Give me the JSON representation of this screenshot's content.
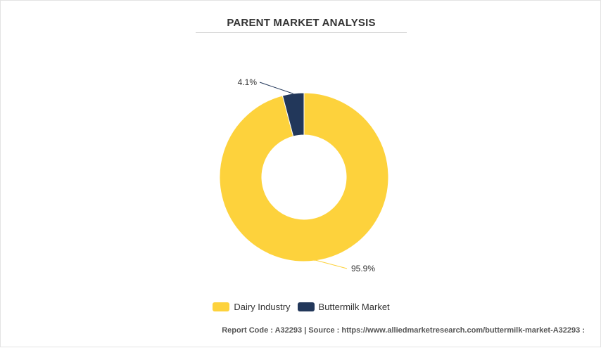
{
  "chart_data": {
    "type": "pie",
    "title": "PARENT MARKET ANALYSIS",
    "categories": [
      "Dairy Industry",
      "Buttermilk Market"
    ],
    "values": [
      95.9,
      4.1
    ],
    "labels": [
      "95.9%",
      "4.1%"
    ],
    "colors": [
      "#FDD23C",
      "#22375A"
    ],
    "donut": true,
    "legend": "bottom"
  },
  "footer": {
    "text": "Report Code : A32293  |  Source : https://www.alliedmarketresearch.com/buttermilk-market-A32293 :"
  }
}
